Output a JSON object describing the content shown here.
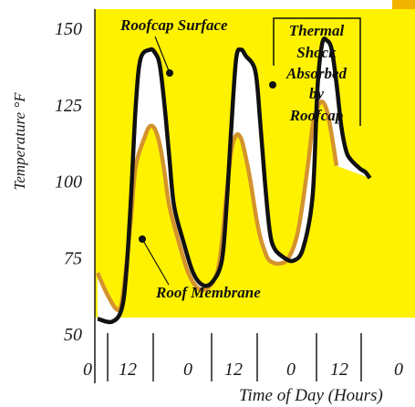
{
  "colors": {
    "background": "#fff200",
    "corner_patch": "#f2b200",
    "band_fill": "#ffffff",
    "surface_line": "#111111",
    "membrane_line": "#d4932c"
  },
  "chart_data": {
    "type": "line",
    "title": "",
    "ylabel": "Temperature °F",
    "xlabel": "Time of Day (Hours)",
    "ylim": [
      50,
      150
    ],
    "yticks": [
      150,
      125,
      100,
      75,
      50
    ],
    "xticks": [
      "0",
      "12",
      "0",
      "12",
      "0",
      "12",
      "0"
    ],
    "xlim": [
      0,
      67
    ],
    "grid": false,
    "series": [
      {
        "name": "Roofcap Surface",
        "x": [
          0,
          3,
          5,
          6,
          7,
          8,
          9,
          11,
          12,
          13,
          14,
          15,
          16,
          18,
          20,
          22,
          24,
          26,
          27,
          28,
          29,
          30,
          31,
          33,
          34,
          35,
          36,
          37,
          39,
          41,
          43,
          45,
          46,
          47,
          48,
          49,
          50,
          51,
          52,
          53,
          55,
          56,
          57
        ],
        "values": [
          55,
          54,
          58,
          70,
          95,
          125,
          140,
          143,
          142,
          138,
          125,
          108,
          92,
          80,
          70,
          66,
          67,
          74,
          92,
          118,
          140,
          143,
          141,
          136,
          120,
          100,
          84,
          78,
          75,
          74,
          78,
          95,
          130,
          145,
          146,
          143,
          132,
          118,
          110,
          107,
          104,
          103,
          101
        ]
      },
      {
        "name": "Roof Membrane",
        "x": [
          0,
          2,
          4,
          5,
          6,
          7,
          8,
          10,
          11,
          12,
          13,
          14,
          15,
          17,
          19,
          21,
          23,
          25,
          26,
          27,
          28,
          29,
          30,
          31,
          32,
          33,
          34,
          35,
          36,
          38,
          40,
          42,
          44,
          45,
          46,
          47,
          48,
          49,
          50
        ],
        "values": [
          70,
          63,
          58,
          60,
          72,
          88,
          105,
          115,
          118,
          117,
          112,
          103,
          92,
          80,
          70,
          65,
          65,
          70,
          80,
          96,
          110,
          115,
          114,
          108,
          100,
          90,
          82,
          77,
          74,
          73,
          75,
          84,
          105,
          118,
          124,
          126,
          123,
          115,
          105
        ]
      }
    ],
    "annotations": [
      {
        "text": "Roofcap Surface"
      },
      {
        "text": "Roof Membrane"
      },
      {
        "text": "Thermal Shock Absorbed by Roofcap",
        "lines": [
          "Thermal",
          "Shock",
          "Absorbed",
          "by",
          "Roofcap"
        ]
      }
    ]
  }
}
